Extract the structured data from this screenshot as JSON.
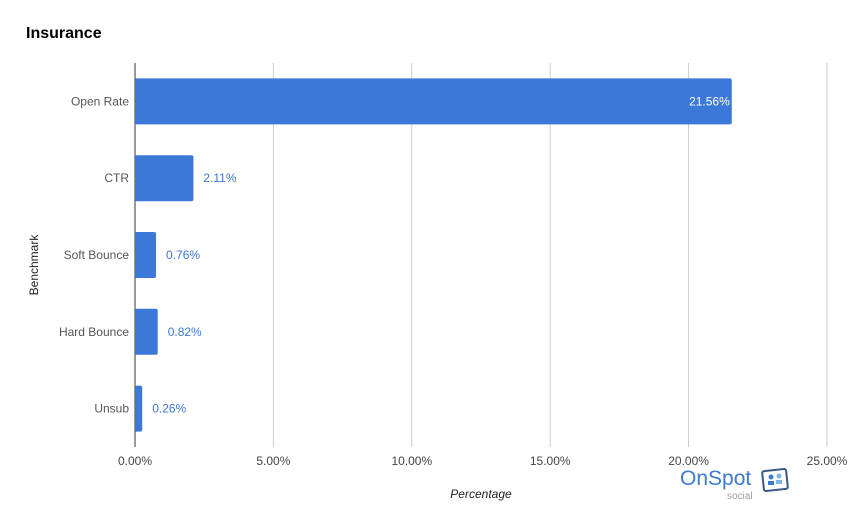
{
  "chart_data": {
    "type": "bar",
    "orientation": "horizontal",
    "title": "Insurance",
    "xlabel": "Percentage",
    "ylabel": "Benchmark",
    "categories": [
      "Open Rate",
      "CTR",
      "Soft Bounce",
      "Hard Bounce",
      "Unsub"
    ],
    "values": [
      21.56,
      2.11,
      0.76,
      0.82,
      0.26
    ],
    "data_labels": [
      "21.56%",
      "2.11%",
      "0.76%",
      "0.82%",
      "0.26%"
    ],
    "xlim": [
      0,
      25
    ],
    "x_ticks": [
      "0.00%",
      "5.00%",
      "10.00%",
      "15.00%",
      "20.00%",
      "25.00%"
    ],
    "grid": "vertical",
    "bar_color": "#3c78d8",
    "label_color_outside": "#3c78d8",
    "label_color_inside": "#ffffff"
  },
  "logo": {
    "name": "OnSpot",
    "sub": "social",
    "icon": "onspot-logo-icon"
  }
}
